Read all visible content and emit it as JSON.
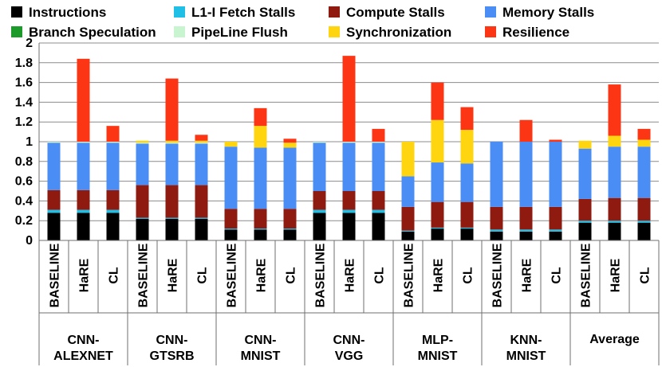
{
  "chart_data": {
    "type": "bar",
    "stacked": true,
    "title": "",
    "xlabel": "",
    "ylabel": "",
    "ylim": [
      0,
      2
    ],
    "yticks": [
      "0",
      "0.2",
      "0.4",
      "0.6",
      "0.8",
      "1",
      "1.2",
      "1.4",
      "1.6",
      "1.8",
      "2"
    ],
    "grid": true,
    "legend_position": "top",
    "legend": [
      {
        "name": "Instructions",
        "color": "#000000"
      },
      {
        "name": "L1-I Fetch Stalls",
        "color": "#1fbfe6"
      },
      {
        "name": "Compute Stalls",
        "color": "#8e1a10"
      },
      {
        "name": "Memory Stalls",
        "color": "#4a8ef5"
      },
      {
        "name": "Branch Speculation",
        "color": "#1c9a2a"
      },
      {
        "name": "PipeLine Flush",
        "color": "#c8f5cf"
      },
      {
        "name": "Synchronization",
        "color": "#ffd510"
      },
      {
        "name": "Resilience",
        "color": "#fc3614"
      }
    ],
    "groups": [
      {
        "name_line1": "CNN-",
        "name_line2": "ALEXNET",
        "categories": [
          "BASELINE",
          "HaRE",
          "CL"
        ]
      },
      {
        "name_line1": "CNN-",
        "name_line2": "GTSRB",
        "categories": [
          "BASELINE",
          "HaRE",
          "CL"
        ]
      },
      {
        "name_line1": "CNN-",
        "name_line2": "MNIST",
        "categories": [
          "BASELINE",
          "HaRE",
          "CL"
        ]
      },
      {
        "name_line1": "CNN-",
        "name_line2": "VGG",
        "categories": [
          "BASELINE",
          "HaRE",
          "CL"
        ]
      },
      {
        "name_line1": "MLP-",
        "name_line2": "MNIST",
        "categories": [
          "BASELINE",
          "HaRE",
          "CL"
        ]
      },
      {
        "name_line1": "KNN-",
        "name_line2": "MNIST",
        "categories": [
          "BASELINE",
          "HaRE",
          "CL"
        ]
      },
      {
        "name_line1": "Average",
        "name_line2": "",
        "categories": [
          "BASELINE",
          "HaRE",
          "CL"
        ]
      }
    ],
    "series": [
      {
        "name": "Instructions",
        "values": [
          0.28,
          0.28,
          0.28,
          0.22,
          0.22,
          0.22,
          0.11,
          0.11,
          0.11,
          0.28,
          0.28,
          0.28,
          0.09,
          0.12,
          0.12,
          0.09,
          0.09,
          0.09,
          0.18,
          0.18,
          0.18
        ]
      },
      {
        "name": "L1-I Fetch Stalls",
        "values": [
          0.03,
          0.03,
          0.03,
          0.01,
          0.01,
          0.01,
          0.01,
          0.01,
          0.01,
          0.03,
          0.03,
          0.03,
          0.01,
          0.01,
          0.01,
          0.02,
          0.02,
          0.02,
          0.02,
          0.02,
          0.02
        ]
      },
      {
        "name": "Compute Stalls",
        "values": [
          0.2,
          0.2,
          0.2,
          0.33,
          0.33,
          0.33,
          0.2,
          0.2,
          0.2,
          0.19,
          0.19,
          0.19,
          0.24,
          0.26,
          0.26,
          0.23,
          0.23,
          0.23,
          0.22,
          0.23,
          0.23
        ]
      },
      {
        "name": "Memory Stalls",
        "values": [
          0.48,
          0.48,
          0.48,
          0.42,
          0.42,
          0.42,
          0.63,
          0.62,
          0.62,
          0.49,
          0.49,
          0.49,
          0.31,
          0.4,
          0.39,
          0.66,
          0.66,
          0.66,
          0.51,
          0.52,
          0.52
        ]
      },
      {
        "name": "Branch Speculation",
        "values": [
          0,
          0,
          0,
          0,
          0,
          0,
          0,
          0,
          0,
          0,
          0,
          0,
          0,
          0,
          0,
          0,
          0,
          0,
          0,
          0,
          0
        ]
      },
      {
        "name": "PipeLine Flush",
        "values": [
          0.01,
          0.01,
          0.01,
          0.01,
          0.01,
          0.01,
          0,
          0,
          0,
          0.01,
          0.01,
          0.01,
          0,
          0,
          0,
          0,
          0,
          0,
          0,
          0,
          0
        ]
      },
      {
        "name": "Synchronization",
        "values": [
          0,
          0,
          0,
          0.02,
          0.02,
          0.02,
          0.05,
          0.22,
          0.05,
          0,
          0,
          0,
          0.35,
          0.43,
          0.34,
          0,
          0,
          0,
          0.08,
          0.11,
          0.07
        ]
      },
      {
        "name": "Resilience",
        "values": [
          0,
          0.84,
          0.16,
          0,
          0.63,
          0.06,
          0,
          0.18,
          0.04,
          0,
          0.87,
          0.13,
          0,
          0.38,
          0.23,
          0,
          0.22,
          0.02,
          0,
          0.52,
          0.11
        ]
      }
    ]
  }
}
